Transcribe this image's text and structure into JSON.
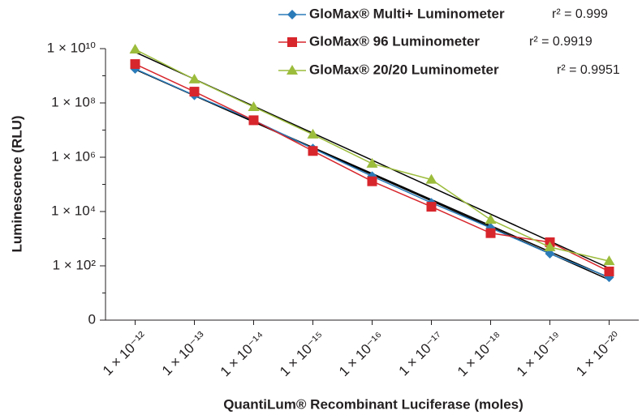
{
  "chart_data": {
    "type": "line",
    "x_label": "QuantiLum® Recombinant Luciferase (moles)",
    "y_label": "Luminescence (RLU)",
    "categories": [
      "1 × 10⁻¹²",
      "1 × 10⁻¹³",
      "1 × 10⁻¹⁴",
      "1 × 10⁻¹⁵",
      "1 × 10⁻¹⁶",
      "1 × 10⁻¹⁷",
      "1 × 10⁻¹⁸",
      "1 × 10⁻¹⁹",
      "1 × 10⁻²⁰"
    ],
    "log_y": true,
    "ylim": [
      1,
      10000000000
    ],
    "yticks": [
      {
        "value": 1,
        "label": "0"
      },
      {
        "value": 100,
        "label": "1 × 10²"
      },
      {
        "value": 10000,
        "label": "1 × 10⁴"
      },
      {
        "value": 1000000,
        "label": "1 × 10⁶"
      },
      {
        "value": 100000000,
        "label": "1 × 10⁸"
      },
      {
        "value": 10000000000,
        "label": "1 × 10¹⁰"
      }
    ],
    "yminorticks": [
      10,
      1000,
      100000,
      10000000,
      1000000000
    ],
    "trendline": true,
    "legend": "top-right",
    "series": [
      {
        "name": "GloMax® Multi+ Luminometer",
        "r2_label": "r² = 0.999",
        "color": "#2b7bb9",
        "marker": "diamond",
        "values": [
          1800000000,
          190000000,
          23000000,
          2100000,
          200000,
          21000,
          2500,
          280,
          38
        ]
      },
      {
        "name": "GloMax® 96 Luminometer",
        "r2_label": "r² = 0.9919",
        "color": "#d7262c",
        "marker": "square",
        "values": [
          2700000000,
          260000000,
          23000000,
          1700000,
          130000,
          15000,
          1600,
          740,
          62
        ]
      },
      {
        "name": "GloMax® 20/20 Luminometer",
        "r2_label": "r² = 0.9951",
        "color": "#9cbc3c",
        "marker": "triangle",
        "values": [
          9300000000,
          740000000,
          71000000,
          6900000,
          580000,
          150000,
          5000,
          490,
          150
        ]
      }
    ]
  }
}
